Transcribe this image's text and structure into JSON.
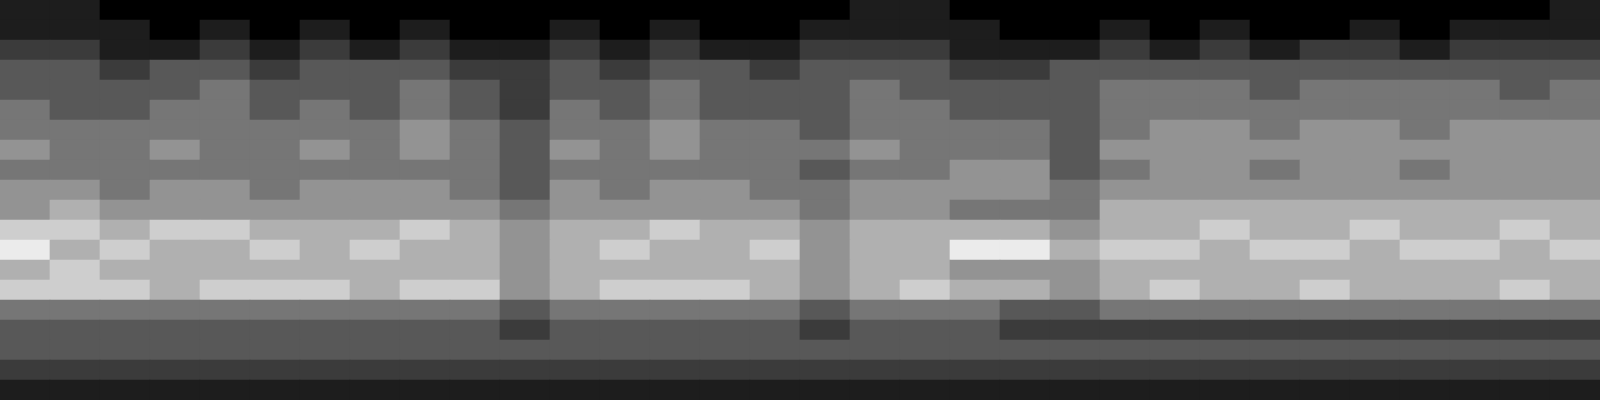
{
  "chart_data": {
    "type": "heatmap",
    "grid": false,
    "tick_labels": false,
    "cells": [
      [
        1,
        1,
        0,
        0,
        0,
        0,
        0,
        0,
        0,
        0,
        0,
        0,
        0,
        0,
        0,
        0,
        0,
        1,
        1,
        0,
        0,
        0,
        0,
        0,
        0,
        0,
        0,
        0,
        0,
        0,
        0,
        1
      ],
      [
        1,
        1,
        1,
        0,
        1,
        0,
        1,
        0,
        1,
        0,
        0,
        1,
        0,
        1,
        0,
        0,
        1,
        1,
        1,
        1,
        0,
        0,
        1,
        0,
        1,
        0,
        0,
        1,
        0,
        1,
        1,
        1
      ],
      [
        2,
        2,
        1,
        1,
        2,
        1,
        2,
        1,
        2,
        1,
        1,
        2,
        1,
        2,
        1,
        1,
        2,
        2,
        2,
        1,
        1,
        1,
        2,
        1,
        2,
        1,
        2,
        2,
        1,
        2,
        2,
        2
      ],
      [
        3,
        3,
        2,
        3,
        3,
        2,
        3,
        3,
        3,
        2,
        2,
        3,
        2,
        3,
        3,
        2,
        3,
        3,
        3,
        2,
        2,
        3,
        3,
        3,
        3,
        3,
        3,
        3,
        3,
        3,
        3,
        3
      ],
      [
        3,
        3,
        3,
        3,
        4,
        3,
        3,
        3,
        4,
        3,
        2,
        3,
        3,
        4,
        3,
        3,
        3,
        4,
        3,
        3,
        3,
        3,
        4,
        4,
        4,
        3,
        4,
        4,
        4,
        4,
        3,
        4
      ],
      [
        4,
        3,
        3,
        4,
        4,
        3,
        4,
        3,
        4,
        3,
        2,
        4,
        3,
        4,
        3,
        3,
        3,
        4,
        4,
        3,
        3,
        3,
        4,
        4,
        4,
        4,
        4,
        4,
        4,
        4,
        4,
        4
      ],
      [
        4,
        4,
        4,
        4,
        4,
        4,
        4,
        4,
        5,
        4,
        3,
        4,
        4,
        5,
        4,
        4,
        3,
        4,
        4,
        4,
        4,
        3,
        4,
        5,
        5,
        4,
        5,
        5,
        4,
        5,
        5,
        5
      ],
      [
        5,
        4,
        4,
        5,
        4,
        4,
        5,
        4,
        5,
        4,
        3,
        5,
        4,
        5,
        4,
        4,
        4,
        5,
        4,
        4,
        4,
        3,
        5,
        5,
        5,
        5,
        5,
        5,
        5,
        5,
        5,
        5
      ],
      [
        4,
        4,
        4,
        4,
        4,
        4,
        4,
        4,
        4,
        4,
        3,
        4,
        4,
        4,
        4,
        4,
        3,
        4,
        4,
        5,
        5,
        3,
        4,
        5,
        5,
        4,
        5,
        5,
        4,
        5,
        5,
        5
      ],
      [
        5,
        5,
        4,
        5,
        5,
        4,
        5,
        5,
        5,
        4,
        3,
        5,
        4,
        5,
        5,
        4,
        4,
        5,
        5,
        5,
        5,
        4,
        5,
        5,
        5,
        5,
        5,
        5,
        5,
        5,
        5,
        5
      ],
      [
        5,
        6,
        5,
        5,
        5,
        5,
        5,
        5,
        5,
        5,
        4,
        5,
        5,
        5,
        5,
        5,
        4,
        5,
        5,
        4,
        4,
        4,
        6,
        6,
        6,
        6,
        6,
        6,
        6,
        6,
        6,
        6
      ],
      [
        7,
        7,
        6,
        7,
        7,
        6,
        6,
        6,
        7,
        6,
        5,
        6,
        6,
        7,
        6,
        6,
        5,
        6,
        6,
        6,
        6,
        5,
        6,
        6,
        7,
        6,
        6,
        7,
        6,
        6,
        7,
        6
      ],
      [
        8,
        6,
        7,
        6,
        6,
        7,
        6,
        7,
        6,
        6,
        5,
        6,
        7,
        6,
        6,
        7,
        5,
        6,
        6,
        8,
        8,
        6,
        7,
        7,
        6,
        7,
        7,
        6,
        7,
        7,
        6,
        7
      ],
      [
        6,
        7,
        6,
        6,
        6,
        6,
        6,
        6,
        6,
        6,
        5,
        6,
        6,
        6,
        6,
        6,
        5,
        6,
        6,
        5,
        5,
        5,
        6,
        6,
        6,
        6,
        6,
        6,
        6,
        6,
        6,
        6
      ],
      [
        7,
        7,
        7,
        6,
        7,
        7,
        7,
        6,
        7,
        7,
        5,
        6,
        7,
        7,
        7,
        6,
        5,
        6,
        7,
        6,
        6,
        5,
        6,
        7,
        6,
        6,
        7,
        6,
        6,
        6,
        7,
        6
      ],
      [
        4,
        4,
        4,
        4,
        4,
        4,
        4,
        4,
        4,
        4,
        3,
        4,
        4,
        4,
        4,
        4,
        3,
        4,
        4,
        4,
        3,
        3,
        4,
        4,
        4,
        4,
        4,
        4,
        4,
        4,
        4,
        4
      ],
      [
        3,
        3,
        3,
        3,
        3,
        3,
        3,
        3,
        3,
        3,
        2,
        3,
        3,
        3,
        3,
        3,
        2,
        3,
        3,
        3,
        2,
        2,
        2,
        2,
        2,
        2,
        2,
        2,
        2,
        2,
        2,
        2
      ],
      [
        3,
        3,
        3,
        3,
        3,
        3,
        3,
        3,
        3,
        3,
        3,
        3,
        3,
        3,
        3,
        3,
        3,
        3,
        3,
        3,
        3,
        3,
        3,
        3,
        3,
        3,
        3,
        3,
        3,
        3,
        3,
        3
      ],
      [
        2,
        2,
        2,
        2,
        2,
        2,
        2,
        2,
        2,
        2,
        2,
        2,
        2,
        2,
        2,
        2,
        2,
        2,
        2,
        2,
        2,
        2,
        2,
        2,
        2,
        2,
        2,
        2,
        2,
        2,
        2,
        2
      ],
      [
        1,
        1,
        1,
        1,
        1,
        1,
        1,
        1,
        1,
        1,
        1,
        1,
        1,
        1,
        1,
        1,
        1,
        1,
        1,
        1,
        1,
        1,
        1,
        1,
        1,
        1,
        1,
        1,
        1,
        1,
        1,
        1
      ]
    ]
  }
}
